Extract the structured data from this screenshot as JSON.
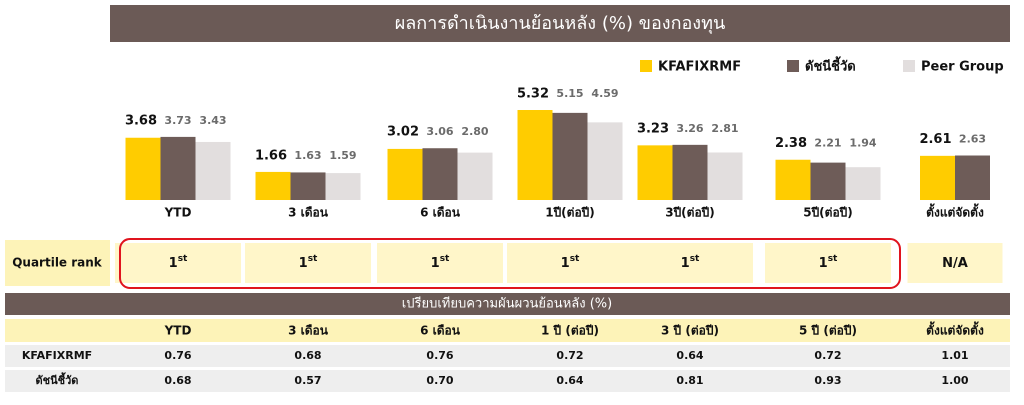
{
  "chart_data": {
    "type": "bar",
    "title": "ผลการดำเนินงานย้อนหลัง (%) ของกองทุน",
    "categories": [
      "YTD",
      "3 เดือน",
      "6 เดือน",
      "1ปี(ต่อปี)",
      "3ปี(ต่อปี)",
      "5ปี(ต่อปี)",
      "ตั้งแต่จัดตั้ง"
    ],
    "series": [
      {
        "name": "KFAFIXRMF",
        "color": "#ffcc00",
        "values": [
          3.68,
          1.66,
          3.02,
          5.32,
          3.23,
          2.38,
          2.61
        ],
        "value_labels": [
          "3.68",
          "1.66",
          "3.02",
          "5.32",
          "3.23",
          "2.38",
          "2.61"
        ]
      },
      {
        "name": "ดัชนีชี้วัด",
        "color": "#6e5c58",
        "values": [
          3.73,
          1.63,
          3.06,
          5.15,
          3.26,
          2.21,
          2.63
        ],
        "value_labels": [
          "3.73",
          "1.63",
          "3.06",
          "5.15",
          "3.26",
          "2.21",
          "2.63"
        ]
      },
      {
        "name": "Peer Group",
        "color": "#e2dede",
        "values": [
          3.43,
          1.59,
          2.8,
          4.59,
          2.81,
          1.94,
          null
        ],
        "value_labels": [
          "3.43",
          "1.59",
          "2.80",
          "4.59",
          "2.81",
          "1.94",
          null
        ]
      }
    ],
    "legend": "top-right"
  },
  "quartile": {
    "label": "Quartile rank",
    "cells": [
      {
        "rank": "1",
        "suffix": "st"
      },
      {
        "rank": "1",
        "suffix": "st"
      },
      {
        "rank": "1",
        "suffix": "st"
      },
      {
        "rank": "1",
        "suffix": "st"
      },
      {
        "rank": "1",
        "suffix": "st"
      },
      {
        "rank": "1",
        "suffix": "st"
      },
      {
        "rank": "N/A"
      }
    ]
  },
  "volatility": {
    "title": "เปรียบเทียบความผันผวนย้อนหลัง (%)",
    "columns": [
      "YTD",
      "3 เดือน",
      "6 เดือน",
      "1 ปี (ต่อปี)",
      "3 ปี (ต่อปี)",
      "5 ปี (ต่อปี)",
      "ตั้งแต่จัดตั้ง"
    ],
    "rows": [
      {
        "name": "KFAFIXRMF",
        "values": [
          "0.76",
          "0.68",
          "0.76",
          "0.72",
          "0.64",
          "0.72",
          "1.01"
        ]
      },
      {
        "name": "ดัชนีชี้วัด",
        "values": [
          "0.68",
          "0.57",
          "0.70",
          "0.64",
          "0.81",
          "0.93",
          "1.00"
        ]
      }
    ]
  }
}
